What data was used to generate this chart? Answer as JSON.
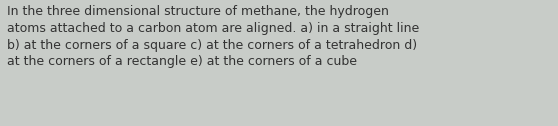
{
  "text": "In the three dimensional structure of methane, the hydrogen\natoms attached to a carbon atom are aligned. a) in a straight line\nb) at the corners of a square c) at the corners of a tetrahedron d)\nat the corners of a rectangle e) at the corners of a cube",
  "background_color": "#c8ccc8",
  "text_color": "#333333",
  "font_size": 9.0,
  "fig_width": 5.58,
  "fig_height": 1.26,
  "dpi": 100
}
